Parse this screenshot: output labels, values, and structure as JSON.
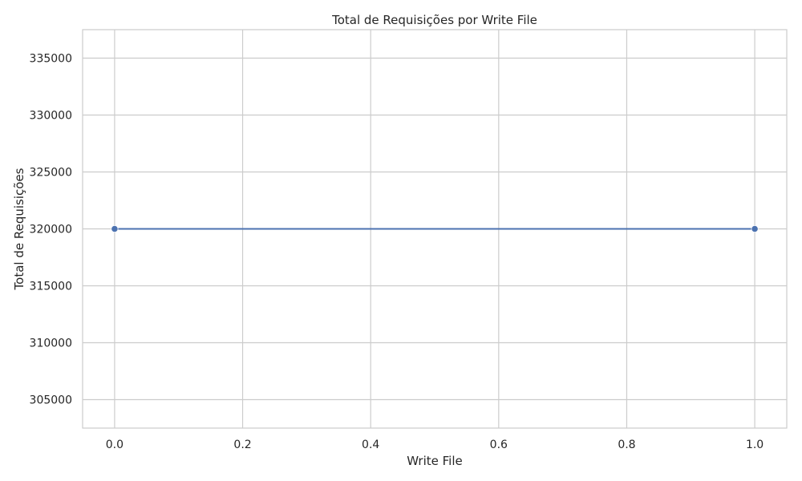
{
  "chart_data": {
    "type": "line",
    "title": "Total de Requisições por Write File",
    "xlabel": "Write File",
    "ylabel": "Total de Requisições",
    "x": [
      0.0,
      1.0
    ],
    "series": [
      {
        "values": [
          320000,
          320000
        ],
        "color": "#4c72b0",
        "marker": "circle"
      }
    ],
    "xlim": [
      -0.05,
      1.05
    ],
    "ylim": [
      302500,
      337500
    ],
    "xticks": [
      0.0,
      0.2,
      0.4,
      0.6,
      0.8,
      1.0
    ],
    "xtick_labels": [
      "0.0",
      "0.2",
      "0.4",
      "0.6",
      "0.8",
      "1.0"
    ],
    "yticks": [
      305000,
      310000,
      315000,
      320000,
      325000,
      330000,
      335000
    ],
    "ytick_labels": [
      "305000",
      "310000",
      "315000",
      "320000",
      "325000",
      "330000",
      "335000"
    ],
    "grid": true,
    "style": {
      "grid_color": "#cccccc",
      "frame_color": "#cccccc",
      "text_color": "#262626"
    }
  }
}
